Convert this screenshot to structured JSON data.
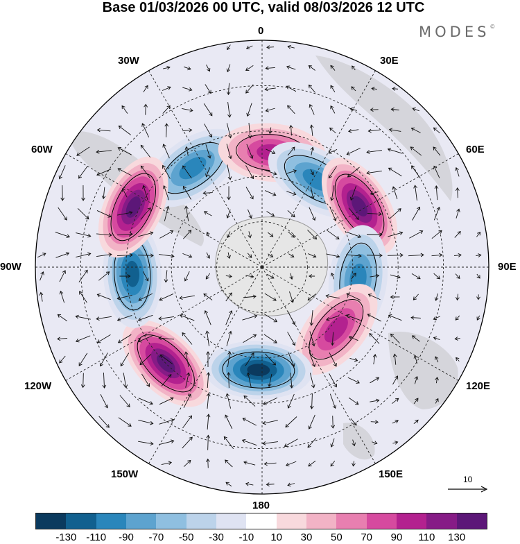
{
  "header": {
    "title": "Base 01/03/2026 00 UTC, valid 08/03/2026 12 UTC",
    "brand": "MODES",
    "brand_mark": "©"
  },
  "map": {
    "projection": "south-polar-stereographic",
    "longitude_labels": [
      "0",
      "30E",
      "60E",
      "90E",
      "120E",
      "150E",
      "180",
      "150W",
      "120W",
      "90W",
      "60W",
      "30W"
    ],
    "anomaly_centers": [
      {
        "name": "neg-center-30w",
        "lon": -35,
        "lat": -50,
        "sign": "negative",
        "magnitude": 90
      },
      {
        "name": "pos-center-0",
        "lon": 5,
        "lat": -52,
        "sign": "positive",
        "magnitude": 90
      },
      {
        "name": "neg-center-30e",
        "lon": 32,
        "lat": -56,
        "sign": "negative",
        "magnitude": 90
      },
      {
        "name": "pos-center-60e",
        "lon": 58,
        "lat": -52,
        "sign": "positive",
        "magnitude": 130
      },
      {
        "name": "neg-center-95e",
        "lon": 97,
        "lat": -58,
        "sign": "negative",
        "magnitude": 90
      },
      {
        "name": "pos-center-130e",
        "lon": 130,
        "lat": -58,
        "sign": "positive",
        "magnitude": 90
      },
      {
        "name": "neg-center-180",
        "lon": -178,
        "lat": -56,
        "sign": "negative",
        "magnitude": 130
      },
      {
        "name": "pos-center-140w",
        "lon": -135,
        "lat": -45,
        "sign": "positive",
        "magnitude": 130
      },
      {
        "name": "neg-center-90w",
        "lon": -93,
        "lat": -47,
        "sign": "negative",
        "magnitude": 110
      },
      {
        "name": "pos-center-65w",
        "lon": -65,
        "lat": -43,
        "sign": "positive",
        "magnitude": 130
      }
    ]
  },
  "colorbar": {
    "tick_labels": [
      "-130",
      "-110",
      "-90",
      "-70",
      "-50",
      "-30",
      "-10",
      "10",
      "30",
      "50",
      "70",
      "90",
      "110",
      "130"
    ],
    "colors": [
      "#0b3a5e",
      "#11608f",
      "#2a86bb",
      "#5da3cf",
      "#8fbfe0",
      "#bcd3ea",
      "#dfe3f2",
      "#ffffff",
      "#f8d9dd",
      "#f2b3c6",
      "#e87fb0",
      "#d64a9f",
      "#b3218f",
      "#861b86",
      "#5c1778"
    ]
  },
  "reference_vector": {
    "value": "10"
  }
}
